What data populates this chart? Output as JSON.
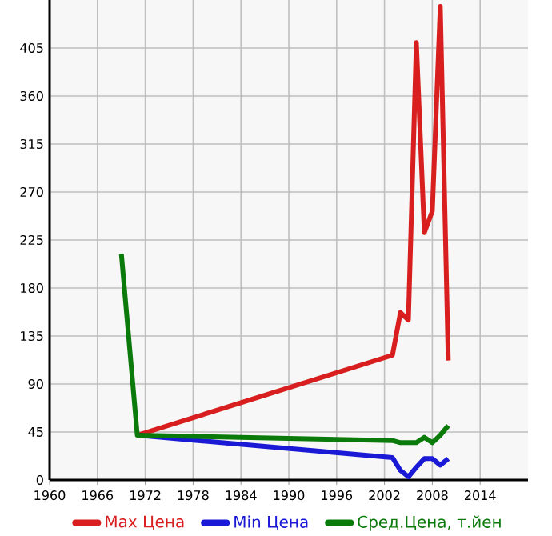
{
  "chart_data": {
    "type": "line",
    "xlim": [
      1960,
      2020
    ],
    "xticks": [
      1960,
      1966,
      1972,
      1978,
      1984,
      1990,
      1996,
      2002,
      2008,
      2014
    ],
    "ylim": [
      0,
      450
    ],
    "yticks": [
      0,
      45,
      90,
      135,
      180,
      225,
      270,
      315,
      360,
      405
    ],
    "grid": true,
    "legend": "bottom",
    "marker": "none",
    "line_style": "solid",
    "series": [
      {
        "name": "Max Цена",
        "color": "#d81e1e",
        "x": [
          1971,
          2003,
          2004,
          2005,
          2006,
          2007,
          2008,
          2009,
          2010
        ],
        "values": [
          42,
          117,
          157,
          150,
          410,
          232,
          252,
          444,
          112
        ]
      },
      {
        "name": "Min Цена",
        "color": "#1a1ad6",
        "x": [
          1971,
          2003,
          2004,
          2005,
          2006,
          2007,
          2008,
          2009,
          2010
        ],
        "values": [
          42,
          21,
          9,
          3,
          12,
          20,
          20,
          14,
          20
        ]
      },
      {
        "name": "Сред.Цена, т.йен",
        "color": "#0a7a0a",
        "x": [
          1969,
          1971,
          2003,
          2004,
          2006,
          2007,
          2008,
          2009,
          2010
        ],
        "values": [
          212,
          42,
          37,
          35,
          35,
          40,
          35,
          42,
          51
        ]
      }
    ]
  }
}
